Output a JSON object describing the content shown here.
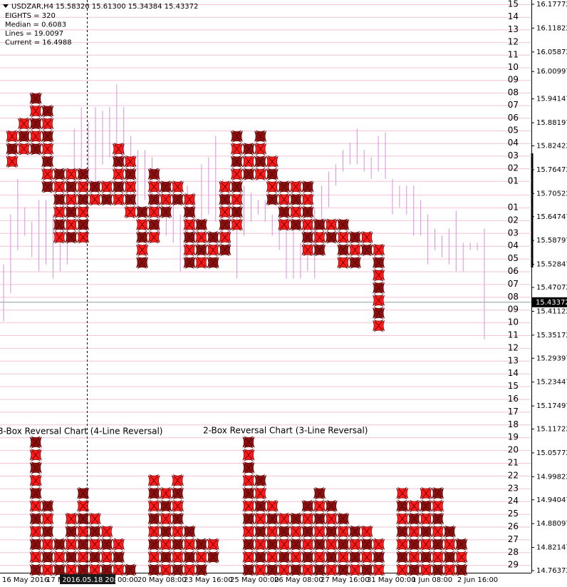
{
  "chart_data": {
    "type": "range-bar",
    "symbol": "USDZAR,H4",
    "ohlc": "15.58320 15.61300 15.34384 15.43372",
    "info": [
      "EIGHTS = 320",
      "Median = 0.6083",
      "Lines = 19.0097",
      "Current = 16.4988"
    ],
    "ylim": [
      14.76372,
      16.17772
    ],
    "yticks": [
      16.17772,
      16.11822,
      16.05872,
      16.00997,
      15.94147,
      15.88197,
      15.82422,
      15.76472,
      15.70522,
      15.64747,
      15.58797,
      15.52847,
      15.47072,
      15.41122,
      15.35172,
      15.29397,
      15.23447,
      15.17497,
      15.11722,
      15.05772,
      14.99822,
      14.94047,
      14.88097,
      14.82147,
      14.76372
    ],
    "current": 15.43372,
    "highs": [
      15.528,
      15.653,
      15.742,
      15.671,
      15.635,
      15.689,
      15.689,
      15.653,
      15.707,
      15.742,
      15.867,
      15.921,
      15.885,
      15.921,
      15.912,
      15.921,
      15.978,
      15.921,
      15.849,
      15.814,
      15.814,
      15.796,
      15.76,
      15.689,
      15.707,
      15.653,
      15.725,
      15.707,
      15.778,
      15.796,
      15.849,
      15.742,
      15.689,
      15.653,
      15.725,
      15.707,
      15.689,
      15.689,
      15.653,
      15.671,
      15.689,
      15.618,
      15.582,
      15.653,
      15.671,
      15.725,
      15.76,
      15.778,
      15.814,
      15.832,
      15.867,
      15.814,
      15.796,
      15.849,
      15.858,
      15.742,
      15.725,
      15.725,
      15.725,
      15.689,
      15.653,
      15.618,
      15.6,
      15.618,
      15.662,
      15.582,
      15.582,
      15.582,
      15.618
    ],
    "lows": [
      15.386,
      15.457,
      15.564,
      15.6,
      15.546,
      15.511,
      15.528,
      15.493,
      15.511,
      15.528,
      15.671,
      15.725,
      15.725,
      15.707,
      15.778,
      15.796,
      15.76,
      15.778,
      15.653,
      15.653,
      15.689,
      15.653,
      15.6,
      15.6,
      15.582,
      15.511,
      15.546,
      15.582,
      15.6,
      15.653,
      15.635,
      15.582,
      15.564,
      15.493,
      15.6,
      15.635,
      15.653,
      15.635,
      15.6,
      15.564,
      15.493,
      15.493,
      15.493,
      15.511,
      15.493,
      15.618,
      15.671,
      15.725,
      15.76,
      15.778,
      15.778,
      15.76,
      15.742,
      15.76,
      15.742,
      15.653,
      15.671,
      15.653,
      15.6,
      15.6,
      15.528,
      15.564,
      15.546,
      15.528,
      15.511,
      15.511,
      15.564,
      15.564,
      15.341
    ],
    "upper_levels": [
      "15",
      "14",
      "13",
      "12",
      "11",
      "10",
      "09",
      "08",
      "07",
      "06",
      "05",
      "04",
      "03",
      "02",
      "01"
    ],
    "lower_levels": [
      "01",
      "02",
      "03",
      "04",
      "05",
      "06",
      "07",
      "08",
      "09",
      "10",
      "11",
      "12",
      "13",
      "14",
      "15",
      "16",
      "17",
      "18",
      "19",
      "20",
      "21",
      "22",
      "23",
      "24",
      "25",
      "26",
      "27",
      "28",
      "29"
    ],
    "upper_columns": [
      {
        "col": 0,
        "top": 3,
        "bottom": 5
      },
      {
        "col": 1,
        "top": 2,
        "bottom": 4
      },
      {
        "col": 2,
        "top": 0,
        "bottom": 4
      },
      {
        "col": 3,
        "top": 1,
        "bottom": 7
      },
      {
        "col": 4,
        "top": 6,
        "bottom": 11
      },
      {
        "col": 5,
        "top": 6,
        "bottom": 11
      },
      {
        "col": 6,
        "top": 6,
        "bottom": 11
      },
      {
        "col": 7,
        "top": 7,
        "bottom": 8
      },
      {
        "col": 8,
        "top": 7,
        "bottom": 8
      },
      {
        "col": 9,
        "top": 4,
        "bottom": 8
      },
      {
        "col": 10,
        "top": 5,
        "bottom": 9
      },
      {
        "col": 11,
        "top": 9,
        "bottom": 13
      },
      {
        "col": 12,
        "top": 6,
        "bottom": 11
      },
      {
        "col": 13,
        "top": 7,
        "bottom": 9
      },
      {
        "col": 14,
        "top": 7,
        "bottom": 8
      },
      {
        "col": 15,
        "top": 8,
        "bottom": 13
      },
      {
        "col": 16,
        "top": 10,
        "bottom": 13
      },
      {
        "col": 17,
        "top": 11,
        "bottom": 13
      },
      {
        "col": 18,
        "top": 7,
        "bottom": 12
      },
      {
        "col": 19,
        "top": 3,
        "bottom": 10
      },
      {
        "col": 20,
        "top": 4,
        "bottom": 6
      },
      {
        "col": 21,
        "top": 3,
        "bottom": 6
      },
      {
        "col": 22,
        "top": 5,
        "bottom": 8
      },
      {
        "col": 23,
        "top": 7,
        "bottom": 10
      },
      {
        "col": 24,
        "top": 7,
        "bottom": 10
      },
      {
        "col": 25,
        "top": 7,
        "bottom": 12
      },
      {
        "col": 26,
        "top": 10,
        "bottom": 12
      },
      {
        "col": 27,
        "top": 10,
        "bottom": 11
      },
      {
        "col": 28,
        "top": 10,
        "bottom": 13
      },
      {
        "col": 29,
        "top": 11,
        "bottom": 13
      },
      {
        "col": 30,
        "top": 11,
        "bottom": 12
      },
      {
        "col": 31,
        "top": 12,
        "bottom": 18
      }
    ],
    "lower_columns": [
      {
        "col": 2,
        "top": 0,
        "bottom": 10
      },
      {
        "col": 3,
        "top": 5,
        "bottom": 10
      },
      {
        "col": 4,
        "top": 8,
        "bottom": 10
      },
      {
        "col": 5,
        "top": 6,
        "bottom": 10
      },
      {
        "col": 6,
        "top": 4,
        "bottom": 10
      },
      {
        "col": 7,
        "top": 6,
        "bottom": 10
      },
      {
        "col": 8,
        "top": 7,
        "bottom": 10
      },
      {
        "col": 9,
        "top": 8,
        "bottom": 10
      },
      {
        "col": 10,
        "top": 10,
        "bottom": 10
      },
      {
        "col": 12,
        "top": 3,
        "bottom": 10
      },
      {
        "col": 13,
        "top": 4,
        "bottom": 10
      },
      {
        "col": 14,
        "top": 3,
        "bottom": 10
      },
      {
        "col": 15,
        "top": 7,
        "bottom": 10
      },
      {
        "col": 16,
        "top": 8,
        "bottom": 10
      },
      {
        "col": 17,
        "top": 8,
        "bottom": 9
      },
      {
        "col": 20,
        "top": 0,
        "bottom": 10
      },
      {
        "col": 21,
        "top": 3,
        "bottom": 10
      },
      {
        "col": 22,
        "top": 5,
        "bottom": 10
      },
      {
        "col": 23,
        "top": 6,
        "bottom": 10
      },
      {
        "col": 24,
        "top": 6,
        "bottom": 10
      },
      {
        "col": 25,
        "top": 5,
        "bottom": 10
      },
      {
        "col": 26,
        "top": 4,
        "bottom": 10
      },
      {
        "col": 27,
        "top": 5,
        "bottom": 10
      },
      {
        "col": 28,
        "top": 6,
        "bottom": 10
      },
      {
        "col": 29,
        "top": 7,
        "bottom": 10
      },
      {
        "col": 30,
        "top": 7,
        "bottom": 10
      },
      {
        "col": 31,
        "top": 8,
        "bottom": 10
      },
      {
        "col": 33,
        "top": 4,
        "bottom": 10
      },
      {
        "col": 34,
        "top": 5,
        "bottom": 10
      },
      {
        "col": 35,
        "top": 4,
        "bottom": 10
      },
      {
        "col": 36,
        "top": 4,
        "bottom": 10
      },
      {
        "col": 37,
        "top": 7,
        "bottom": 10
      },
      {
        "col": 38,
        "top": 8,
        "bottom": 10
      }
    ],
    "upper_chart_label": "3-Box Reversal Chart (4-Line Reversal)",
    "lower_chart_label": "2-Box Reversal Chart (3-Line Reversal)",
    "time_labels": [
      "16 May 2016",
      "17 M",
      "00:00",
      "20 May 08:00",
      "23 May 16:00",
      "25 May 00:00",
      "26 May 08:00",
      "27 May 16:00",
      "31 May 00:00",
      "1 Jun 08:00",
      "2 Jun 16:00"
    ],
    "cursor_time": "2016.05.18 20:00"
  }
}
